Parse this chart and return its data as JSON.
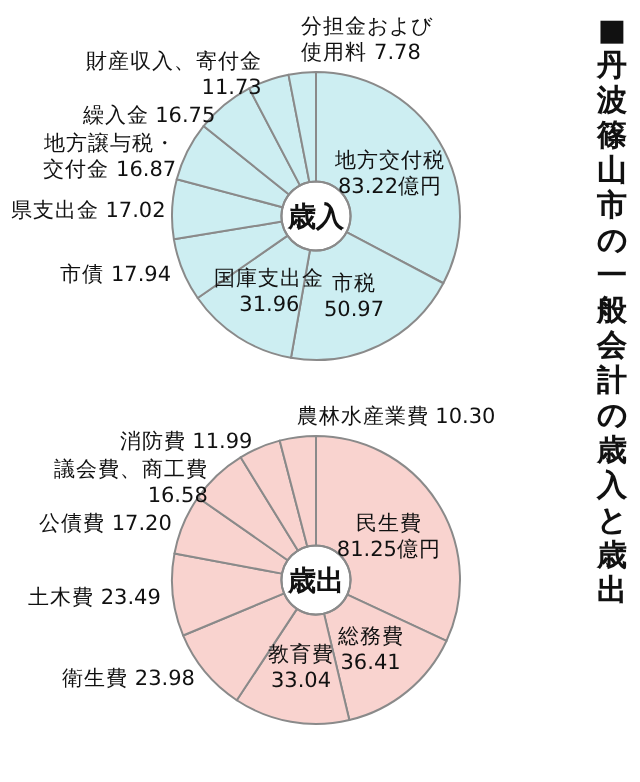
{
  "chart_data": [
    {
      "type": "donut",
      "title": "歳入",
      "annotations": [
        "■丹波篠山市の一般会計の歳入と歳出"
      ],
      "categories": [
        "地方交付税",
        "市税",
        "国庫支出金",
        "市債",
        "県支出金",
        "地方譲与税・交付金",
        "繰入金",
        "財産収入、寄付金",
        "分担金および使用料"
      ],
      "values": [
        83.22,
        50.97,
        31.96,
        17.94,
        17.02,
        16.87,
        16.75,
        11.73,
        7.78
      ],
      "value_labels": [
        "83.22億円",
        "50.97",
        "31.96",
        "17.94",
        "17.02",
        "16.87",
        "16.75",
        "11.73",
        "7.78"
      ],
      "colors": [
        "#cdeef2",
        "#cdeef2",
        "#cdeef2",
        "#cdeef2",
        "#cdeef2",
        "#cdeef2",
        "#cdeef2",
        "#cdeef2",
        "#cdeef2"
      ]
    },
    {
      "type": "donut",
      "title": "歳出",
      "categories": [
        "民生費",
        "総務費",
        "教育費",
        "衛生費",
        "土木費",
        "公債費",
        "議会費、商工費",
        "消防費",
        "農林水産業費"
      ],
      "values": [
        81.25,
        36.41,
        33.04,
        23.98,
        23.49,
        17.2,
        16.58,
        11.99,
        10.3
      ],
      "value_labels": [
        "81.25億円",
        "36.41",
        "33.04",
        "23.98",
        "23.49",
        "17.20",
        "16.58",
        "11.99",
        "10.30"
      ],
      "colors": [
        "#f9d3cf",
        "#f9d3cf",
        "#f9d3cf",
        "#f9d3cf",
        "#f9d3cf",
        "#f9d3cf",
        "#f9d3cf",
        "#f9d3cf",
        "#f9d3cf"
      ]
    }
  ]
}
